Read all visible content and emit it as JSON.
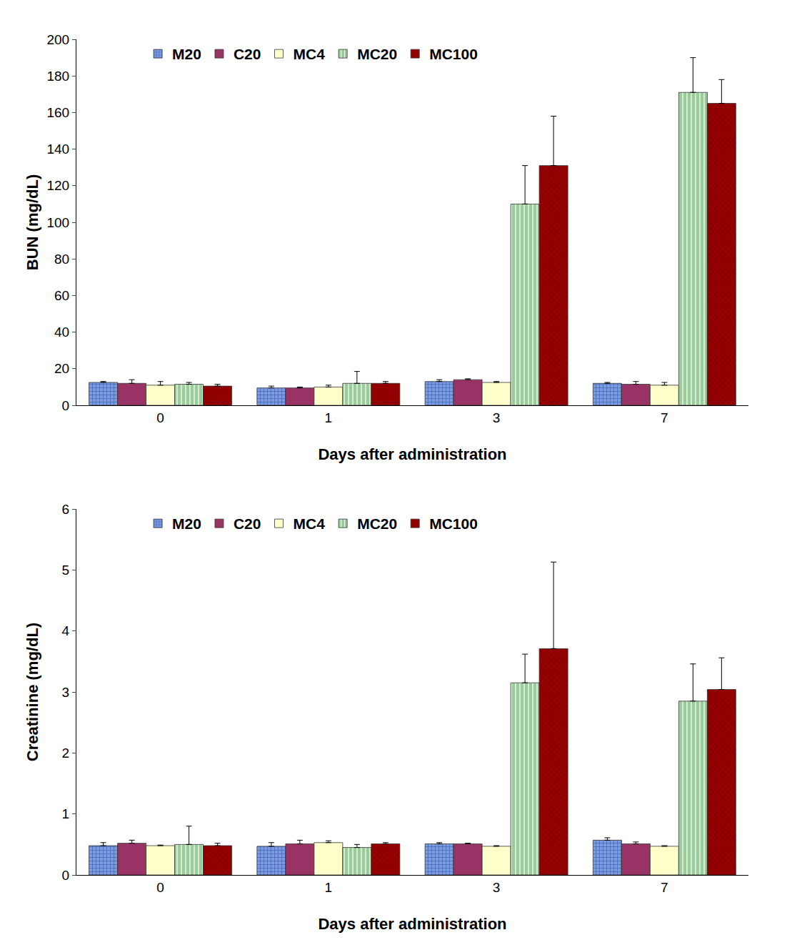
{
  "chart_data": [
    {
      "type": "bar",
      "x_label": "Days after administration",
      "y_label": "BUN (mg/dL)",
      "categories": [
        "0",
        "1",
        "3",
        "7"
      ],
      "ylim": [
        0,
        200
      ],
      "yticks": [
        0,
        20,
        40,
        60,
        80,
        100,
        120,
        140,
        160,
        180,
        200
      ],
      "grid": false,
      "legend": "top",
      "series": [
        {
          "name": "M20",
          "color": "#7b9be0",
          "values": [
            12.5,
            9.5,
            13,
            12
          ],
          "errors": [
            0.5,
            1,
            1,
            0.5
          ]
        },
        {
          "name": "C20",
          "color": "#993366",
          "values": [
            12,
            9.5,
            14,
            11.5
          ],
          "errors": [
            2,
            0.5,
            0.5,
            1.5
          ]
        },
        {
          "name": "MC4",
          "color": "#ffffcc",
          "values": [
            11,
            10,
            12.5,
            11
          ],
          "errors": [
            2,
            1,
            0.5,
            1.5
          ]
        },
        {
          "name": "MC20",
          "color": "#99cc99",
          "values": [
            11.5,
            12,
            110,
            171
          ],
          "errors": [
            1,
            6.5,
            21,
            19
          ]
        },
        {
          "name": "MC100",
          "color": "#990000",
          "values": [
            10.5,
            12,
            131,
            165
          ],
          "errors": [
            1,
            1,
            27,
            13
          ]
        }
      ]
    },
    {
      "type": "bar",
      "x_label": "Days after administration",
      "y_label": "Creatinine (mg/dL)",
      "categories": [
        "0",
        "1",
        "3",
        "7"
      ],
      "ylim": [
        0,
        6
      ],
      "yticks": [
        0,
        1,
        2,
        3,
        4,
        5,
        6
      ],
      "grid": false,
      "legend": "top",
      "series": [
        {
          "name": "M20",
          "color": "#7b9be0",
          "values": [
            0.48,
            0.47,
            0.51,
            0.57
          ],
          "errors": [
            0.05,
            0.06,
            0.02,
            0.04
          ]
        },
        {
          "name": "C20",
          "color": "#993366",
          "values": [
            0.52,
            0.51,
            0.51,
            0.51
          ],
          "errors": [
            0.05,
            0.06,
            0.01,
            0.03
          ]
        },
        {
          "name": "MC4",
          "color": "#ffffcc",
          "values": [
            0.48,
            0.53,
            0.47,
            0.47
          ],
          "errors": [
            0.01,
            0.03,
            0.01,
            0.01
          ]
        },
        {
          "name": "MC20",
          "color": "#99cc99",
          "values": [
            0.5,
            0.45,
            3.15,
            2.85
          ],
          "errors": [
            0.3,
            0.05,
            0.47,
            0.61
          ]
        },
        {
          "name": "MC100",
          "color": "#990000",
          "values": [
            0.48,
            0.51,
            3.71,
            3.04
          ],
          "errors": [
            0.04,
            0.02,
            1.42,
            0.52
          ]
        }
      ]
    }
  ]
}
